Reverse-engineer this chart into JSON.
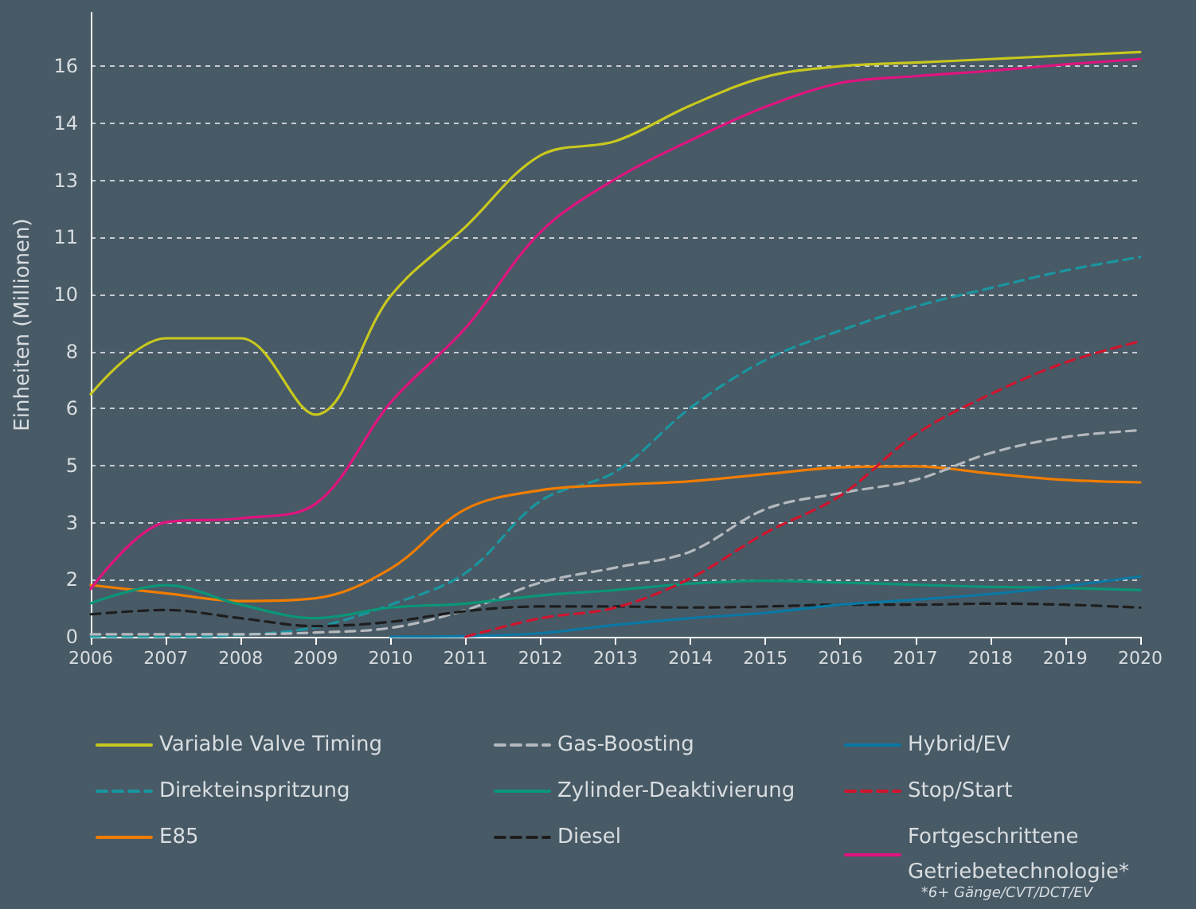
{
  "chart_data": {
    "type": "line",
    "ylabel": "Einheiten (Millionen)",
    "x": [
      2006,
      2007,
      2008,
      2009,
      2010,
      2011,
      2012,
      2013,
      2014,
      2015,
      2016,
      2017,
      2018,
      2019,
      2020
    ],
    "xlim": [
      2006,
      2020
    ],
    "xticks": [
      2006,
      2007,
      2008,
      2009,
      2010,
      2011,
      2012,
      2013,
      2014,
      2015,
      2016,
      2017,
      2018,
      2019,
      2020
    ],
    "ylim": [
      0,
      17.5
    ],
    "yticks": [
      0,
      {
        "value": 1.6,
        "label": "2"
      },
      {
        "value": 3.2,
        "label": "3"
      },
      {
        "value": 4.8,
        "label": "5"
      },
      {
        "value": 6.4,
        "label": "6"
      },
      8,
      {
        "value": 9.6,
        "label": "10"
      },
      {
        "value": 11.2,
        "label": "11"
      },
      {
        "value": 12.8,
        "label": "13"
      },
      {
        "value": 14.4,
        "label": "14"
      },
      16
    ],
    "grid": "y",
    "legend": "bottom",
    "marker": "none",
    "annotations": [
      "*6+ Gänge/CVT/DCT/EV"
    ],
    "series": [
      {
        "name": "Variable Valve Timing",
        "color": "#c8c81e",
        "line_style": "solid",
        "values": [
          6.8,
          8.37,
          8.37,
          6.23,
          9.56,
          11.5,
          13.5,
          13.9,
          14.9,
          15.7,
          16.0,
          16.1,
          16.2,
          16.3,
          16.4
        ]
      },
      {
        "name": "Direkteinspritzung",
        "color": "#1a96a0",
        "line_style": "dashed",
        "values": [
          0,
          0,
          0.05,
          0.27,
          0.9,
          1.79,
          3.81,
          4.63,
          6.42,
          7.76,
          8.59,
          9.26,
          9.78,
          10.27,
          10.65
        ]
      },
      {
        "name": "E85",
        "color": "#f07d00",
        "line_style": "solid",
        "values": [
          1.45,
          1.22,
          1.0,
          1.08,
          1.91,
          3.58,
          4.11,
          4.26,
          4.36,
          4.56,
          4.75,
          4.78,
          4.58,
          4.4,
          4.33
        ]
      },
      {
        "name": "Gas-Boosting",
        "color": "#b4b9be",
        "line_style": "dashed",
        "values": [
          0.07,
          0.07,
          0.07,
          0.12,
          0.25,
          0.75,
          1.52,
          1.94,
          2.39,
          3.58,
          4.03,
          4.4,
          5.15,
          5.6,
          5.79
        ]
      },
      {
        "name": "Zylinder-Deaktivierung",
        "color": "#0a9678",
        "line_style": "solid",
        "values": [
          0.94,
          1.45,
          0.9,
          0.52,
          0.82,
          0.93,
          1.16,
          1.31,
          1.49,
          1.57,
          1.52,
          1.46,
          1.4,
          1.37,
          1.31
        ]
      },
      {
        "name": "Diesel",
        "color": "#1e1e1e",
        "line_style": "dashed",
        "values": [
          0.63,
          0.75,
          0.52,
          0.3,
          0.42,
          0.72,
          0.85,
          0.85,
          0.82,
          0.85,
          0.9,
          0.9,
          0.93,
          0.9,
          0.82
        ]
      },
      {
        "name": "Hybrid/EV",
        "color": "#0a78a5",
        "line_style": "solid",
        "values": [
          null,
          null,
          null,
          null,
          0,
          0.02,
          0.1,
          0.33,
          0.52,
          0.67,
          0.9,
          1.04,
          1.2,
          1.42,
          1.69
        ]
      },
      {
        "name": "Stop/Start",
        "color": "#d0142d",
        "line_style": "dashed",
        "values": [
          null,
          null,
          null,
          null,
          null,
          0,
          0.52,
          0.82,
          1.64,
          2.91,
          3.96,
          5.67,
          6.8,
          7.69,
          8.29
        ]
      },
      {
        "name": "Fortgeschrittene Getriebetechnologie*",
        "color": "#e0147f",
        "line_style": "solid",
        "values": [
          1.34,
          3.21,
          3.32,
          3.73,
          6.57,
          8.66,
          11.35,
          12.84,
          13.92,
          14.86,
          15.53,
          15.72,
          15.87,
          16.05,
          16.2
        ]
      }
    ]
  }
}
